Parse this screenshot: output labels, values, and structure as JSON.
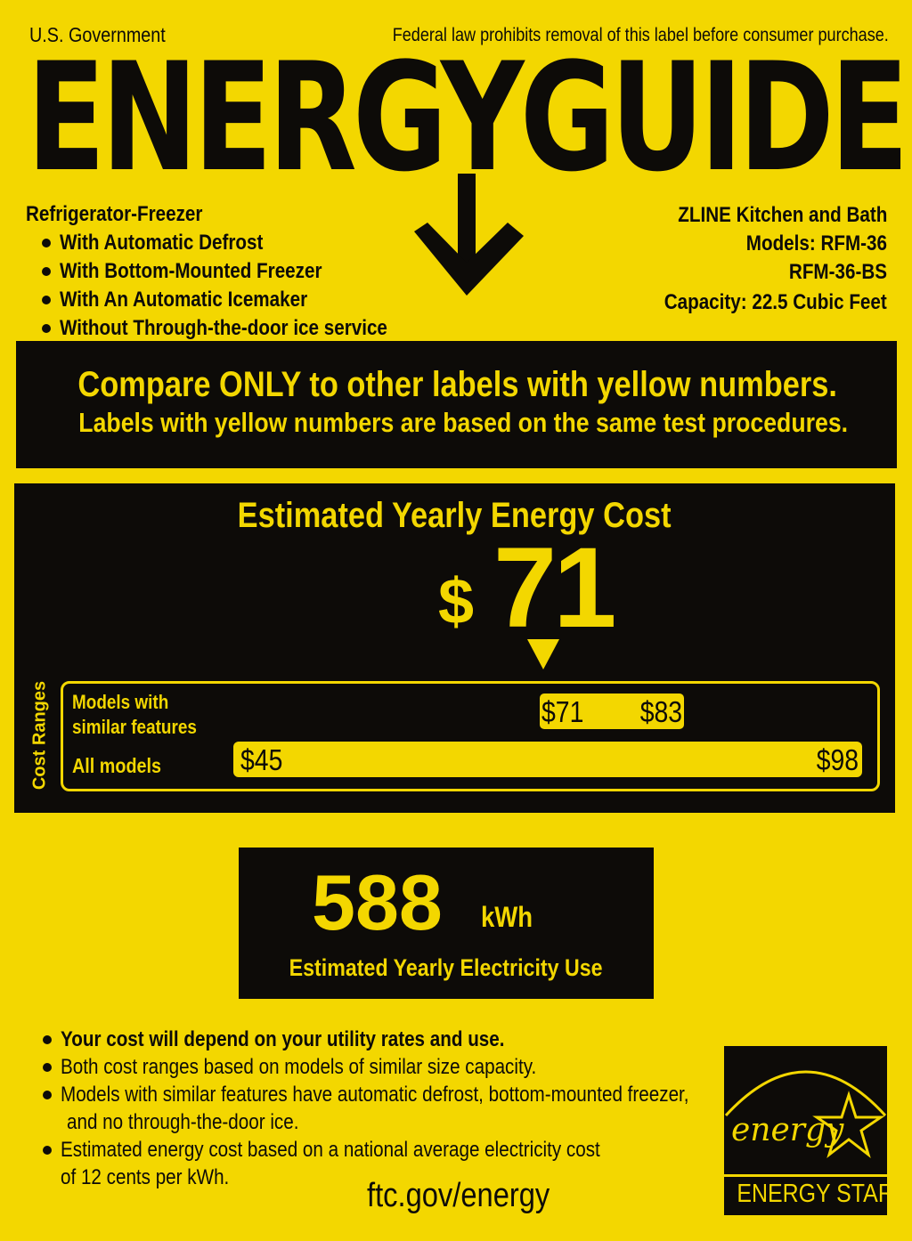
{
  "header": {
    "left": "U.S. Government",
    "right": "Federal law prohibits removal of this label before consumer purchase.",
    "title": "ENERGYGUIDE"
  },
  "product": {
    "type": "Refrigerator-Freezer",
    "features": [
      "With Automatic Defrost",
      "With Bottom-Mounted Freezer",
      "With An Automatic Icemaker",
      "Without Through-the-door ice service"
    ],
    "manufacturer": "ZLINE Kitchen and Bath",
    "models_line1": "Models: RFM-36",
    "models_line2": "RFM-36-BS",
    "capacity": "Capacity: 22.5 Cubic Feet"
  },
  "compare": {
    "line1": "Compare ONLY to other labels with yellow numbers.",
    "line2": "Labels with yellow numbers are based on the same test procedures."
  },
  "cost": {
    "heading": "Estimated Yearly Energy Cost",
    "currency": "$",
    "value": "71",
    "value_number": 71,
    "ranges_label": "Cost Ranges",
    "similar_label_1": "Models with",
    "similar_label_2": "similar features",
    "all_label": "All models",
    "similar_min": 71,
    "similar_max": 83,
    "similar_min_text": "$71",
    "similar_max_text": "$83",
    "all_min": 45,
    "all_max": 98,
    "all_min_text": "$45",
    "all_max_text": "$98"
  },
  "electricity": {
    "value": "588",
    "unit": "kWh",
    "label": "Estimated Yearly Electricity Use"
  },
  "notes": [
    "Your cost will depend on your utility rates and use.",
    "Both cost ranges based on models of similar size capacity.",
    "Models with similar features have automatic defrost, bottom-mounted freezer,",
    "and no through-the-door ice.",
    "Estimated energy cost based on a national average electricity cost",
    "of 12 cents per kWh."
  ],
  "footer": {
    "url": "ftc.gov/energy",
    "energy_star_script": "energy",
    "energy_star_label": "ENERGY STAR"
  },
  "colors": {
    "yellow": "#f3d700",
    "black": "#0d0b08"
  }
}
